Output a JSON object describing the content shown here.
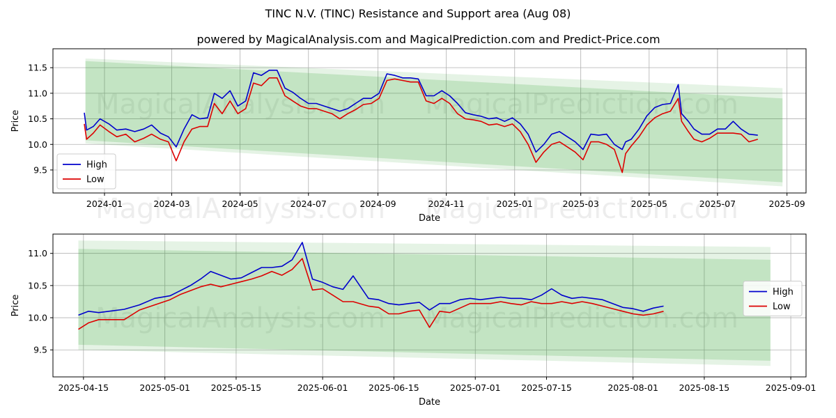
{
  "page": {
    "title": "TINC N.V. (TINC) Resistance and Support area (Aug 08)",
    "subtitle": "powered by MagicalAnalysis.com and MagicalPrediction.com and Predict-Price.com",
    "watermarks": [
      "MagicalAnalysis.com",
      "MagicalPrediction.com"
    ]
  },
  "colors": {
    "high": "#0000cc",
    "low": "#dd0000",
    "band": "#2ca02c",
    "grid": "#b0b0b0"
  },
  "chart_data": [
    {
      "type": "line",
      "name": "full-range",
      "xlabel": "Date",
      "ylabel": "Price",
      "xlim": [
        "2023-11-16",
        "2025-09-18"
      ],
      "ylim": [
        9.05,
        11.87
      ],
      "x_ticks": [
        "2024-01",
        "2024-03",
        "2024-05",
        "2024-07",
        "2024-09",
        "2024-11",
        "2025-01",
        "2025-03",
        "2025-05",
        "2025-07",
        "2025-09"
      ],
      "x_tick_dates": [
        "2024-01-01",
        "2024-03-01",
        "2024-05-01",
        "2024-07-01",
        "2024-09-01",
        "2024-11-01",
        "2025-01-01",
        "2025-03-01",
        "2025-05-01",
        "2025-07-01",
        "2025-09-01"
      ],
      "y_ticks": [
        "9.5",
        "10.0",
        "10.5",
        "11.0",
        "11.5"
      ],
      "y_tick_values": [
        9.5,
        10.0,
        10.5,
        11.0,
        11.5
      ],
      "legend": [
        "High",
        "Low"
      ],
      "legend_loc": "lower-left",
      "grid": true,
      "bands": [
        {
          "x": [
            "2023-12-15",
            "2025-08-28"
          ],
          "upper": [
            11.68,
            11.1
          ],
          "lower": [
            10.02,
            9.18
          ],
          "opacity": 0.12
        },
        {
          "x": [
            "2023-12-15",
            "2025-08-28"
          ],
          "upper": [
            11.63,
            10.9
          ],
          "lower": [
            10.08,
            9.26
          ],
          "opacity": 0.18
        }
      ],
      "series": [
        {
          "name": "High",
          "x": [
            "2023-12-14",
            "2023-12-16",
            "2023-12-22",
            "2023-12-28",
            "2024-01-05",
            "2024-01-12",
            "2024-01-20",
            "2024-01-28",
            "2024-02-05",
            "2024-02-12",
            "2024-02-20",
            "2024-02-27",
            "2024-03-05",
            "2024-03-12",
            "2024-03-19",
            "2024-03-26",
            "2024-04-02",
            "2024-04-08",
            "2024-04-15",
            "2024-04-22",
            "2024-04-29",
            "2024-05-06",
            "2024-05-13",
            "2024-05-20",
            "2024-05-27",
            "2024-06-03",
            "2024-06-10",
            "2024-06-17",
            "2024-06-24",
            "2024-07-01",
            "2024-07-08",
            "2024-07-15",
            "2024-07-22",
            "2024-07-29",
            "2024-08-05",
            "2024-08-12",
            "2024-08-19",
            "2024-08-26",
            "2024-09-02",
            "2024-09-09",
            "2024-09-16",
            "2024-09-23",
            "2024-09-30",
            "2024-10-07",
            "2024-10-14",
            "2024-10-21",
            "2024-10-28",
            "2024-11-04",
            "2024-11-11",
            "2024-11-18",
            "2024-11-25",
            "2024-12-02",
            "2024-12-09",
            "2024-12-16",
            "2024-12-23",
            "2024-12-30",
            "2025-01-06",
            "2025-01-13",
            "2025-01-20",
            "2025-01-27",
            "2025-02-03",
            "2025-02-10",
            "2025-02-17",
            "2025-02-24",
            "2025-03-03",
            "2025-03-10",
            "2025-03-17",
            "2025-03-24",
            "2025-03-31",
            "2025-04-07",
            "2025-04-10",
            "2025-04-15",
            "2025-04-22",
            "2025-04-29",
            "2025-05-06",
            "2025-05-13",
            "2025-05-20",
            "2025-05-27",
            "2025-05-30",
            "2025-06-05",
            "2025-06-10",
            "2025-06-17",
            "2025-06-24",
            "2025-07-01",
            "2025-07-08",
            "2025-07-15",
            "2025-07-22",
            "2025-07-29",
            "2025-08-06"
          ],
          "y": [
            10.62,
            10.28,
            10.35,
            10.5,
            10.4,
            10.28,
            10.3,
            10.25,
            10.3,
            10.38,
            10.22,
            10.15,
            9.95,
            10.3,
            10.58,
            10.5,
            10.52,
            11.0,
            10.9,
            11.05,
            10.75,
            10.85,
            11.4,
            11.35,
            11.45,
            11.45,
            11.1,
            11.02,
            10.9,
            10.8,
            10.8,
            10.75,
            10.7,
            10.65,
            10.7,
            10.8,
            10.9,
            10.9,
            11.0,
            11.38,
            11.35,
            11.3,
            11.3,
            11.28,
            10.95,
            10.95,
            11.05,
            10.95,
            10.8,
            10.62,
            10.58,
            10.55,
            10.5,
            10.52,
            10.45,
            10.52,
            10.4,
            10.2,
            9.85,
            10.0,
            10.2,
            10.25,
            10.15,
            10.05,
            9.9,
            10.2,
            10.18,
            10.2,
            10.0,
            9.9,
            10.05,
            10.1,
            10.3,
            10.56,
            10.72,
            10.78,
            10.8,
            11.17,
            10.6,
            10.45,
            10.3,
            10.2,
            10.2,
            10.3,
            10.3,
            10.45,
            10.3,
            10.2,
            10.18
          ]
        },
        {
          "name": "Low",
          "x": [
            "2023-12-14",
            "2023-12-16",
            "2023-12-22",
            "2023-12-28",
            "2024-01-05",
            "2024-01-12",
            "2024-01-20",
            "2024-01-28",
            "2024-02-05",
            "2024-02-12",
            "2024-02-20",
            "2024-02-27",
            "2024-03-05",
            "2024-03-12",
            "2024-03-19",
            "2024-03-26",
            "2024-04-02",
            "2024-04-08",
            "2024-04-15",
            "2024-04-22",
            "2024-04-29",
            "2024-05-06",
            "2024-05-13",
            "2024-05-20",
            "2024-05-27",
            "2024-06-03",
            "2024-06-10",
            "2024-06-17",
            "2024-06-24",
            "2024-07-01",
            "2024-07-08",
            "2024-07-15",
            "2024-07-22",
            "2024-07-29",
            "2024-08-05",
            "2024-08-12",
            "2024-08-19",
            "2024-08-26",
            "2024-09-02",
            "2024-09-09",
            "2024-09-16",
            "2024-09-23",
            "2024-09-30",
            "2024-10-07",
            "2024-10-14",
            "2024-10-21",
            "2024-10-28",
            "2024-11-04",
            "2024-11-11",
            "2024-11-18",
            "2024-11-25",
            "2024-12-02",
            "2024-12-09",
            "2024-12-16",
            "2024-12-23",
            "2024-12-30",
            "2025-01-06",
            "2025-01-13",
            "2025-01-20",
            "2025-01-27",
            "2025-02-03",
            "2025-02-10",
            "2025-02-17",
            "2025-02-24",
            "2025-03-03",
            "2025-03-10",
            "2025-03-17",
            "2025-03-24",
            "2025-03-31",
            "2025-04-07",
            "2025-04-10",
            "2025-04-15",
            "2025-04-22",
            "2025-04-29",
            "2025-05-06",
            "2025-05-13",
            "2025-05-20",
            "2025-05-27",
            "2025-05-30",
            "2025-06-05",
            "2025-06-10",
            "2025-06-17",
            "2025-06-24",
            "2025-07-01",
            "2025-07-08",
            "2025-07-15",
            "2025-07-22",
            "2025-07-29",
            "2025-08-06"
          ],
          "y": [
            10.4,
            10.1,
            10.22,
            10.38,
            10.25,
            10.15,
            10.2,
            10.05,
            10.12,
            10.2,
            10.1,
            10.05,
            9.68,
            10.05,
            10.3,
            10.35,
            10.35,
            10.8,
            10.6,
            10.85,
            10.6,
            10.7,
            11.2,
            11.15,
            11.3,
            11.3,
            10.95,
            10.85,
            10.75,
            10.7,
            10.7,
            10.65,
            10.6,
            10.5,
            10.6,
            10.68,
            10.78,
            10.8,
            10.9,
            11.25,
            11.28,
            11.25,
            11.22,
            11.22,
            10.85,
            10.8,
            10.9,
            10.8,
            10.6,
            10.5,
            10.48,
            10.45,
            10.38,
            10.4,
            10.35,
            10.4,
            10.25,
            10.0,
            9.65,
            9.85,
            10.0,
            10.05,
            9.95,
            9.85,
            9.7,
            10.05,
            10.05,
            10.0,
            9.9,
            9.45,
            9.82,
            9.97,
            10.15,
            10.38,
            10.52,
            10.6,
            10.65,
            10.9,
            10.45,
            10.25,
            10.1,
            10.05,
            10.12,
            10.22,
            10.22,
            10.22,
            10.2,
            10.05,
            10.1
          ]
        }
      ]
    },
    {
      "type": "line",
      "name": "zoomed-range",
      "xlabel": "Date",
      "ylabel": "Price",
      "xlim": [
        "2025-04-09",
        "2025-09-04"
      ],
      "ylim": [
        9.08,
        11.3
      ],
      "x_ticks": [
        "2025-04-15",
        "2025-05-01",
        "2025-05-15",
        "2025-06-01",
        "2025-06-15",
        "2025-07-01",
        "2025-07-15",
        "2025-08-01",
        "2025-08-15",
        "2025-09-01"
      ],
      "x_tick_dates": [
        "2025-04-15",
        "2025-05-01",
        "2025-05-15",
        "2025-06-01",
        "2025-06-15",
        "2025-07-01",
        "2025-07-15",
        "2025-08-01",
        "2025-08-15",
        "2025-09-01"
      ],
      "y_ticks": [
        "9.5",
        "10.0",
        "10.5",
        "11.0"
      ],
      "y_tick_values": [
        9.5,
        10.0,
        10.5,
        11.0
      ],
      "legend": [
        "High",
        "Low"
      ],
      "legend_loc": "center-right",
      "grid": true,
      "bands": [
        {
          "x": [
            "2025-04-14",
            "2025-08-28"
          ],
          "upper": [
            11.2,
            11.1
          ],
          "lower": [
            9.5,
            9.25
          ],
          "opacity": 0.12
        },
        {
          "x": [
            "2025-04-14",
            "2025-08-28"
          ],
          "upper": [
            11.07,
            10.9
          ],
          "lower": [
            9.58,
            9.33
          ],
          "opacity": 0.18
        }
      ],
      "series": [
        {
          "name": "High",
          "x": [
            "2025-04-14",
            "2025-04-16",
            "2025-04-18",
            "2025-04-20",
            "2025-04-23",
            "2025-04-26",
            "2025-04-29",
            "2025-05-02",
            "2025-05-04",
            "2025-05-06",
            "2025-05-08",
            "2025-05-10",
            "2025-05-12",
            "2025-05-14",
            "2025-05-16",
            "2025-05-18",
            "2025-05-20",
            "2025-05-22",
            "2025-05-24",
            "2025-05-26",
            "2025-05-28",
            "2025-05-30",
            "2025-06-01",
            "2025-06-03",
            "2025-06-05",
            "2025-06-07",
            "2025-06-10",
            "2025-06-12",
            "2025-06-14",
            "2025-06-16",
            "2025-06-18",
            "2025-06-20",
            "2025-06-22",
            "2025-06-24",
            "2025-06-26",
            "2025-06-28",
            "2025-06-30",
            "2025-07-02",
            "2025-07-04",
            "2025-07-06",
            "2025-07-08",
            "2025-07-10",
            "2025-07-12",
            "2025-07-14",
            "2025-07-16",
            "2025-07-18",
            "2025-07-20",
            "2025-07-22",
            "2025-07-24",
            "2025-07-26",
            "2025-07-28",
            "2025-07-30",
            "2025-08-01",
            "2025-08-03",
            "2025-08-05",
            "2025-08-07"
          ],
          "y": [
            10.04,
            10.1,
            10.08,
            10.1,
            10.13,
            10.2,
            10.3,
            10.34,
            10.42,
            10.5,
            10.6,
            10.72,
            10.66,
            10.6,
            10.62,
            10.7,
            10.78,
            10.78,
            10.8,
            10.9,
            11.17,
            10.6,
            10.55,
            10.48,
            10.44,
            10.65,
            10.3,
            10.28,
            10.22,
            10.2,
            10.22,
            10.24,
            10.12,
            10.22,
            10.22,
            10.28,
            10.3,
            10.28,
            10.3,
            10.32,
            10.3,
            10.3,
            10.28,
            10.35,
            10.45,
            10.35,
            10.3,
            10.32,
            10.3,
            10.28,
            10.22,
            10.16,
            10.14,
            10.1,
            10.15,
            10.18
          ]
        },
        {
          "name": "Low",
          "x": [
            "2025-04-14",
            "2025-04-16",
            "2025-04-18",
            "2025-04-20",
            "2025-04-23",
            "2025-04-26",
            "2025-04-29",
            "2025-05-02",
            "2025-05-04",
            "2025-05-06",
            "2025-05-08",
            "2025-05-10",
            "2025-05-12",
            "2025-05-14",
            "2025-05-16",
            "2025-05-18",
            "2025-05-20",
            "2025-05-22",
            "2025-05-24",
            "2025-05-26",
            "2025-05-28",
            "2025-05-30",
            "2025-06-01",
            "2025-06-03",
            "2025-06-05",
            "2025-06-07",
            "2025-06-10",
            "2025-06-12",
            "2025-06-14",
            "2025-06-16",
            "2025-06-18",
            "2025-06-20",
            "2025-06-22",
            "2025-06-24",
            "2025-06-26",
            "2025-06-28",
            "2025-06-30",
            "2025-07-02",
            "2025-07-04",
            "2025-07-06",
            "2025-07-08",
            "2025-07-10",
            "2025-07-12",
            "2025-07-14",
            "2025-07-16",
            "2025-07-18",
            "2025-07-20",
            "2025-07-22",
            "2025-07-24",
            "2025-07-26",
            "2025-07-28",
            "2025-07-30",
            "2025-08-01",
            "2025-08-03",
            "2025-08-05",
            "2025-08-07"
          ],
          "y": [
            9.82,
            9.92,
            9.97,
            9.97,
            9.97,
            10.12,
            10.2,
            10.28,
            10.36,
            10.42,
            10.48,
            10.52,
            10.48,
            10.52,
            10.56,
            10.6,
            10.65,
            10.72,
            10.66,
            10.75,
            10.92,
            10.43,
            10.45,
            10.35,
            10.25,
            10.25,
            10.18,
            10.16,
            10.06,
            10.06,
            10.1,
            10.12,
            9.85,
            10.1,
            10.08,
            10.15,
            10.22,
            10.22,
            10.22,
            10.25,
            10.22,
            10.2,
            10.25,
            10.22,
            10.22,
            10.25,
            10.22,
            10.25,
            10.22,
            10.18,
            10.14,
            10.1,
            10.06,
            10.04,
            10.06,
            10.1
          ]
        }
      ]
    }
  ]
}
